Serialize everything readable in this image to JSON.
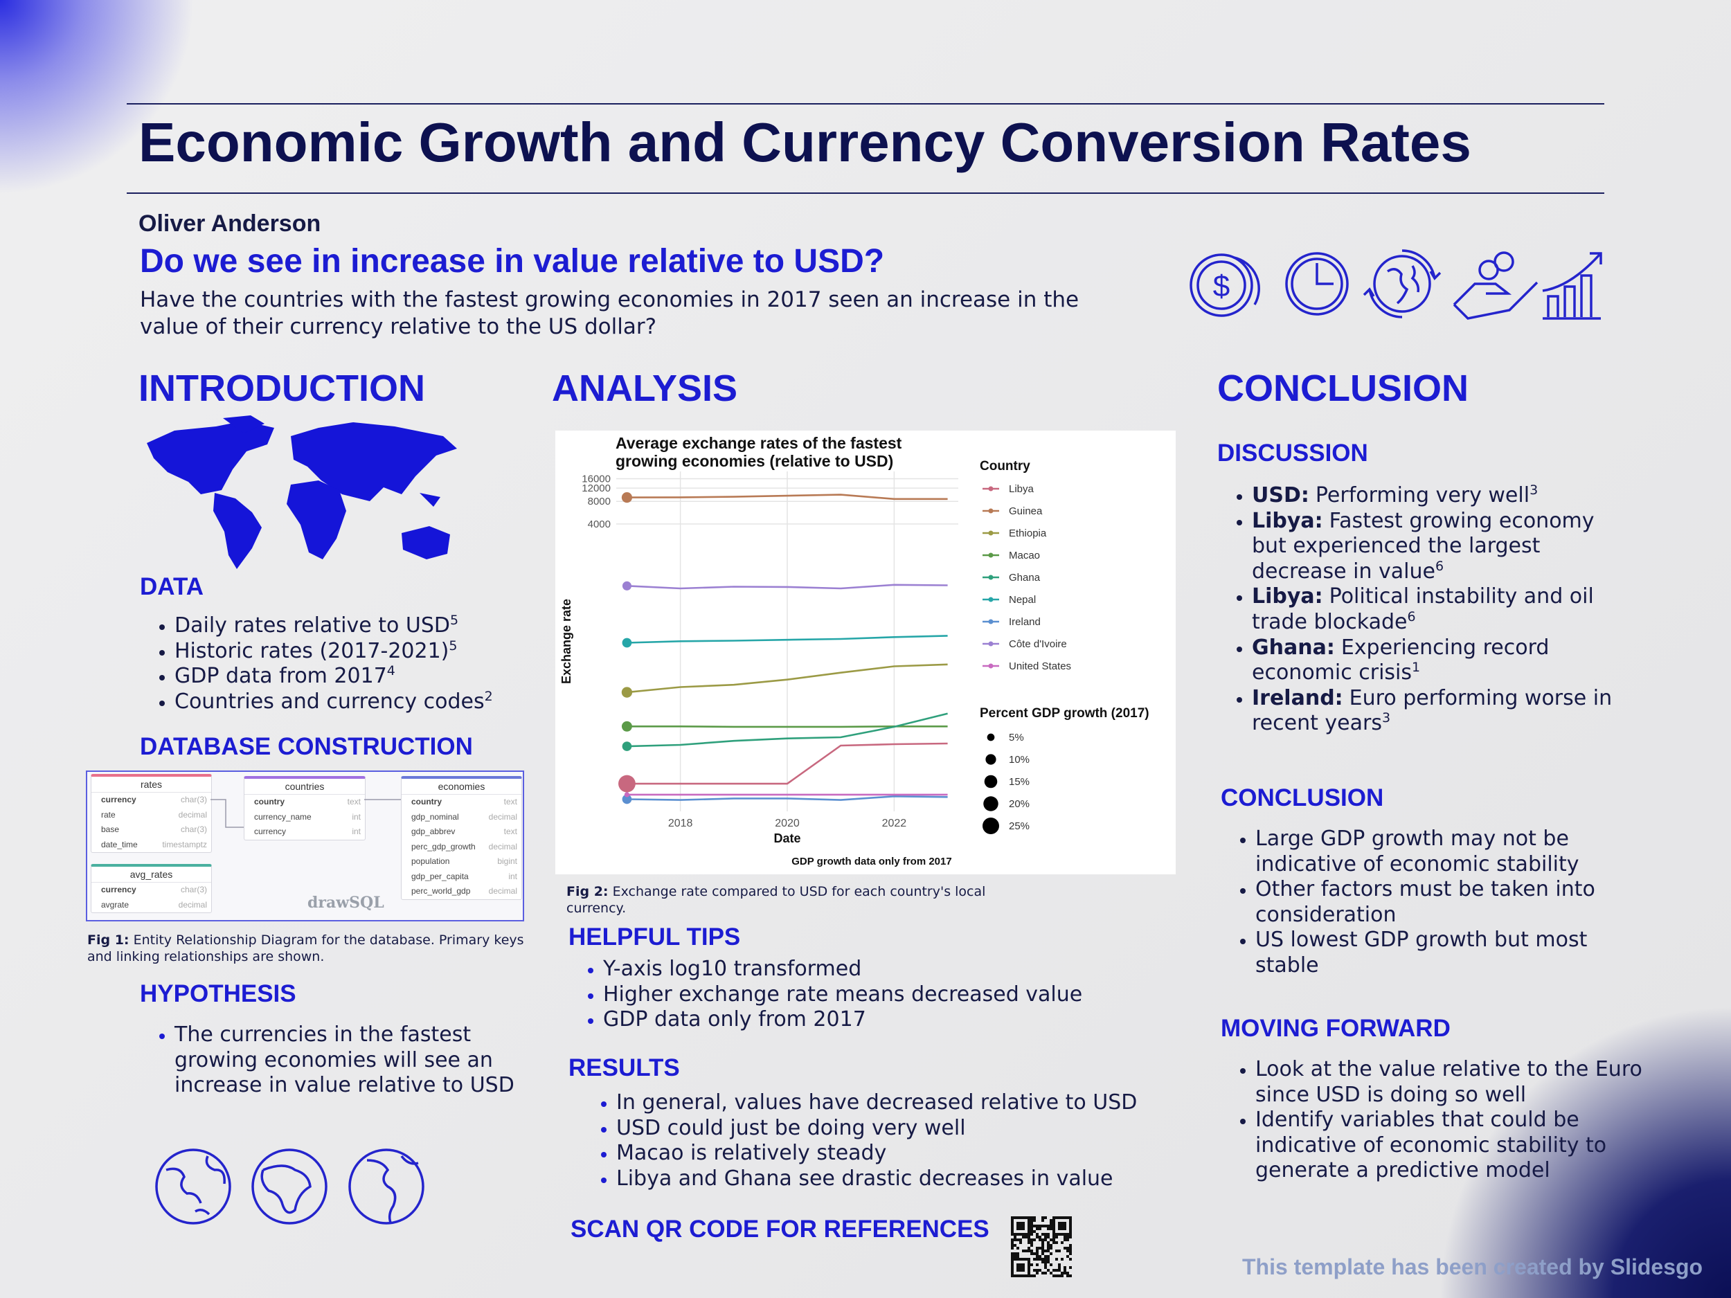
{
  "header": {
    "title": "Economic Growth and Currency Conversion Rates",
    "author": "Oliver Anderson",
    "question": "Do we see in increase in value relative to USD?",
    "description": "Have the countries with the fastest growing economies in 2017 seen an increase in the value of their currency relative to the US dollar?"
  },
  "introduction": {
    "heading": "INTRODUCTION",
    "data": {
      "heading": "DATA",
      "items": [
        {
          "text": "Daily rates relative to USD",
          "ref": 5
        },
        {
          "text": "Historic rates (2017-2021)",
          "ref": 5
        },
        {
          "text": "GDP data from 2017",
          "ref": 4
        },
        {
          "text": "Countries and currency codes",
          "ref": 2
        }
      ]
    },
    "database": {
      "heading": "DATABASE CONSTRUCTION",
      "tables": [
        {
          "name": "rates",
          "fields": [
            {
              "name": "currency",
              "type": "char(3)"
            },
            {
              "name": "rate",
              "type": "decimal"
            },
            {
              "name": "base",
              "type": "char(3)"
            },
            {
              "name": "date_time",
              "type": "timestamptz"
            }
          ]
        },
        {
          "name": "countries",
          "fields": [
            {
              "name": "country",
              "type": "text"
            },
            {
              "name": "currency_name",
              "type": "int"
            },
            {
              "name": "currency",
              "type": "int"
            }
          ]
        },
        {
          "name": "economies",
          "fields": [
            {
              "name": "country",
              "type": "text"
            },
            {
              "name": "gdp_nominal",
              "type": "decimal"
            },
            {
              "name": "gdp_abbrev",
              "type": "text"
            },
            {
              "name": "perc_gdp_growth",
              "type": "decimal"
            },
            {
              "name": "population",
              "type": "bigint"
            },
            {
              "name": "gdp_per_capita",
              "type": "int"
            },
            {
              "name": "perc_world_gdp",
              "type": "decimal"
            }
          ]
        },
        {
          "name": "avg_rates",
          "fields": [
            {
              "name": "currency",
              "type": "char(3)"
            },
            {
              "name": "avgrate",
              "type": "decimal"
            }
          ]
        }
      ],
      "logo": "drawSQL",
      "caption": {
        "label": "Fig 1:",
        "text": "Entity Relationship Diagram for the database. Primary keys and linking relationships are shown."
      }
    },
    "hypothesis": {
      "heading": "HYPOTHESIS",
      "items": [
        "The currencies in the fastest growing economies will see an increase in value relative to USD"
      ]
    }
  },
  "analysis": {
    "heading": "ANALYSIS",
    "caption": {
      "label": "Fig 2:",
      "text": "Exchange rate compared to USD for each country's local currency."
    },
    "tips": {
      "heading": "HELPFUL TIPS",
      "items": [
        "Y-axis log10 transformed",
        "Higher exchange rate means decreased value",
        "GDP data only from 2017"
      ]
    },
    "results": {
      "heading": "RESULTS",
      "items": [
        "In general, values have decreased relative to USD",
        "USD could just be doing very well",
        "Macao is relatively steady",
        "Libya and Ghana see drastic decreases in value"
      ]
    },
    "qr_label": "SCAN QR CODE FOR REFERENCES"
  },
  "conclusion": {
    "heading": "CONCLUSION",
    "discussion": {
      "heading": "DISCUSSION",
      "items": [
        {
          "label": "USD:",
          "text": "Performing very well",
          "ref": 3
        },
        {
          "label": "Libya:",
          "text": "Fastest growing economy but experienced the largest decrease in value",
          "ref": 6
        },
        {
          "label": "Libya:",
          "text": "Political instability and oil trade blockade",
          "ref": 6
        },
        {
          "label": "Ghana:",
          "text": "Experiencing record economic crisis",
          "ref": 1
        },
        {
          "label": "Ireland:",
          "text": "Euro performing worse in recent years",
          "ref": 3
        }
      ]
    },
    "summary": {
      "heading": "CONCLUSION",
      "items": [
        "Large GDP growth may not be indicative of economic stability",
        "Other factors must be taken into consideration",
        "US lowest GDP growth but most stable"
      ]
    },
    "forward": {
      "heading": "MOVING FORWARD",
      "items": [
        "Look at the value relative to the Euro since USD is doing so well",
        "Identify variables that could be indicative of economic stability to generate a predictive model"
      ]
    }
  },
  "footer": "This template has been created by Slidesgo",
  "chart_data": {
    "type": "line",
    "title": "Average exchange rates of the fastest growing economies (relative to USD)",
    "x_label": "Date",
    "y_label": "Exchange rate",
    "note": "GDP growth data only from 2017",
    "legend_title": "Country",
    "size_legend_title": "Percent GDP growth (2017)",
    "size_legend": [
      {
        "value": 5,
        "label": "5%"
      },
      {
        "value": 10,
        "label": "10%"
      },
      {
        "value": 15,
        "label": "15%"
      },
      {
        "value": 20,
        "label": "20%"
      },
      {
        "value": 25,
        "label": "25%"
      }
    ],
    "log_scale": true,
    "grid": true,
    "x": [
      2017,
      2018,
      2019,
      2020,
      2021,
      2022,
      2023
    ],
    "xlim": [
      2016.8,
      2023.2
    ],
    "xticks": [
      2018,
      2020,
      2022
    ],
    "ylim": [
      0.6,
      20000
    ],
    "yticks": [
      4000,
      8000,
      12000,
      16000
    ],
    "series": [
      {
        "name": "Libya",
        "color": "#c8687f",
        "gdp_growth": 26.7,
        "values": [
          1.4,
          1.4,
          1.4,
          1.4,
          4.5,
          4.7,
          4.8
        ]
      },
      {
        "name": "Guinea",
        "color": "#b87a55",
        "gdp_growth": 10,
        "values": [
          9000,
          9050,
          9200,
          9500,
          9800,
          8600,
          8600
        ]
      },
      {
        "name": "Ethiopia",
        "color": "#9b9a45",
        "gdp_growth": 10.2,
        "values": [
          23,
          27,
          29,
          34,
          42,
          51,
          54
        ]
      },
      {
        "name": "Macao",
        "color": "#5b9a48",
        "gdp_growth": 9.7,
        "values": [
          8.1,
          8.1,
          8.0,
          8.0,
          8.0,
          8.1,
          8.1
        ]
      },
      {
        "name": "Ghana",
        "color": "#2fa07c",
        "gdp_growth": 8.1,
        "values": [
          4.4,
          4.6,
          5.2,
          5.6,
          5.8,
          8,
          12
        ]
      },
      {
        "name": "Nepal",
        "color": "#26a6a8",
        "gdp_growth": 8.2,
        "values": [
          105,
          110,
          112,
          115,
          118,
          125,
          130
        ]
      },
      {
        "name": "Ireland",
        "color": "#5b8fd0",
        "gdp_growth": 8.1,
        "values": [
          0.87,
          0.85,
          0.89,
          0.89,
          0.85,
          0.95,
          0.93
        ]
      },
      {
        "name": "Côte d'Ivoire",
        "color": "#9b80d2",
        "gdp_growth": 7.4,
        "values": [
          600,
          555,
          585,
          580,
          555,
          620,
          610
        ]
      },
      {
        "name": "United States",
        "color": "#c86ac0",
        "gdp_growth": 2.3,
        "values": [
          1,
          1,
          1,
          1,
          1,
          1,
          1
        ]
      }
    ]
  }
}
